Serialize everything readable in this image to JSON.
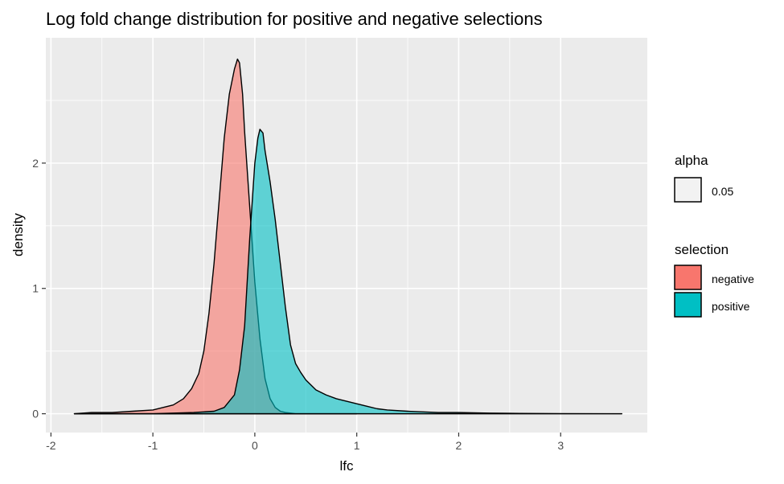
{
  "chart_data": {
    "type": "area",
    "title": "Log fold change distribution for positive and negative selections",
    "xlabel": "lfc",
    "ylabel": "density",
    "xlim": [
      -2.05,
      3.85
    ],
    "ylim": [
      -0.15,
      3.0
    ],
    "xticks": [
      -2,
      -1,
      0,
      1,
      2,
      3
    ],
    "yticks": [
      0,
      1,
      2
    ],
    "xticklabels": [
      "-2",
      "-1",
      "0",
      "1",
      "2",
      "3"
    ],
    "yticklabels": [
      "0",
      "1",
      "2"
    ],
    "grid": true,
    "legend_placement": "right",
    "legends": [
      {
        "title": "alpha",
        "entries": [
          {
            "label": "0.05",
            "color": "#f0f0f0"
          }
        ]
      },
      {
        "title": "selection",
        "entries": [
          {
            "label": "negative",
            "color": "#F8766D"
          },
          {
            "label": "positive",
            "color": "#00BFC4"
          }
        ]
      }
    ],
    "series": [
      {
        "name": "negative",
        "color": "#F8766D",
        "x": [
          -1.77,
          -1.6,
          -1.4,
          -1.2,
          -1.0,
          -0.9,
          -0.8,
          -0.7,
          -0.62,
          -0.55,
          -0.5,
          -0.45,
          -0.4,
          -0.35,
          -0.3,
          -0.25,
          -0.2,
          -0.17,
          -0.15,
          -0.12,
          -0.1,
          -0.05,
          0.0,
          0.05,
          0.1,
          0.15,
          0.2,
          0.25,
          0.3,
          0.4,
          0.5,
          0.7,
          1.0
        ],
        "y": [
          0.0,
          0.01,
          0.01,
          0.02,
          0.03,
          0.05,
          0.07,
          0.12,
          0.2,
          0.32,
          0.5,
          0.8,
          1.2,
          1.7,
          2.2,
          2.55,
          2.75,
          2.83,
          2.8,
          2.55,
          2.25,
          1.65,
          1.05,
          0.6,
          0.28,
          0.12,
          0.05,
          0.02,
          0.01,
          0.0,
          0.0,
          0.0,
          0.0
        ]
      },
      {
        "name": "positive",
        "color": "#00BFC4",
        "x": [
          -1.77,
          -1.0,
          -0.6,
          -0.4,
          -0.3,
          -0.2,
          -0.15,
          -0.1,
          -0.05,
          0.0,
          0.03,
          0.05,
          0.08,
          0.1,
          0.15,
          0.2,
          0.25,
          0.3,
          0.35,
          0.4,
          0.45,
          0.5,
          0.6,
          0.7,
          0.8,
          0.9,
          1.0,
          1.1,
          1.2,
          1.3,
          1.5,
          1.8,
          2.0,
          2.3,
          2.6,
          3.0,
          3.6
        ],
        "y": [
          0.0,
          0.0,
          0.01,
          0.02,
          0.05,
          0.15,
          0.35,
          0.7,
          1.4,
          2.0,
          2.2,
          2.27,
          2.24,
          2.1,
          1.85,
          1.55,
          1.2,
          0.85,
          0.55,
          0.4,
          0.33,
          0.27,
          0.19,
          0.15,
          0.12,
          0.1,
          0.08,
          0.06,
          0.04,
          0.03,
          0.02,
          0.01,
          0.01,
          0.005,
          0.003,
          0.001,
          0.0
        ]
      }
    ]
  }
}
